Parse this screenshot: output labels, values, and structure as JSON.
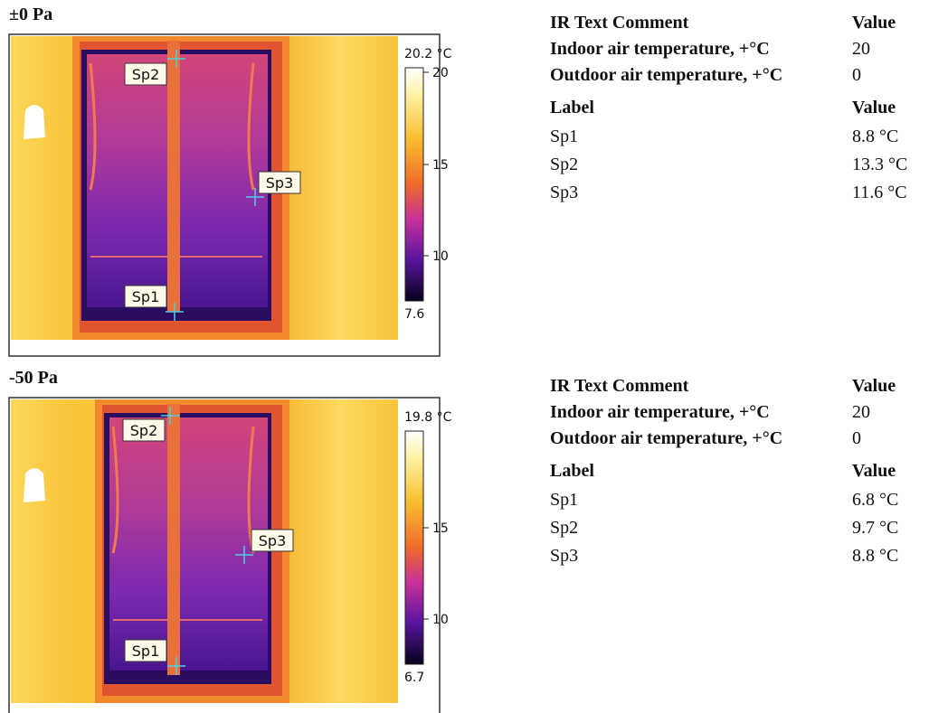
{
  "panels": [
    {
      "title": "±0 Pa",
      "image": {
        "scale_max": "20.2 °C",
        "scale_ticks": [
          "20",
          "15",
          "10"
        ],
        "scale_min": "7.6",
        "spots": [
          "Sp1",
          "Sp2",
          "Sp3"
        ]
      },
      "comments": {
        "header": [
          "IR Text Comment",
          "Value"
        ],
        "rows": [
          [
            "Indoor air temperature,  +°C",
            "20"
          ],
          [
            "Outdoor air temperature, +°C",
            "0"
          ]
        ]
      },
      "measurements": {
        "header": [
          "Label",
          "Value"
        ],
        "rows": [
          [
            "Sp1",
            "8.8 °C"
          ],
          [
            "Sp2",
            "13.3 °C"
          ],
          [
            "Sp3",
            "11.6 °C"
          ]
        ]
      }
    },
    {
      "title": "-50 Pa",
      "image": {
        "scale_max": "19.8 °C",
        "scale_ticks": [
          "15",
          "10"
        ],
        "scale_min": "6.7",
        "spots": [
          "Sp1",
          "Sp2",
          "Sp3"
        ]
      },
      "comments": {
        "header": [
          "IR Text Comment",
          "Value"
        ],
        "rows": [
          [
            "Indoor air temperature,  +°C",
            "20"
          ],
          [
            "Outdoor air temperature, +°C",
            "0"
          ]
        ]
      },
      "measurements": {
        "header": [
          "Label",
          "Value"
        ],
        "rows": [
          [
            "Sp1",
            "6.8 °C"
          ],
          [
            "Sp2",
            "9.7 °C"
          ],
          [
            "Sp3",
            "8.8 °C"
          ]
        ]
      }
    }
  ]
}
